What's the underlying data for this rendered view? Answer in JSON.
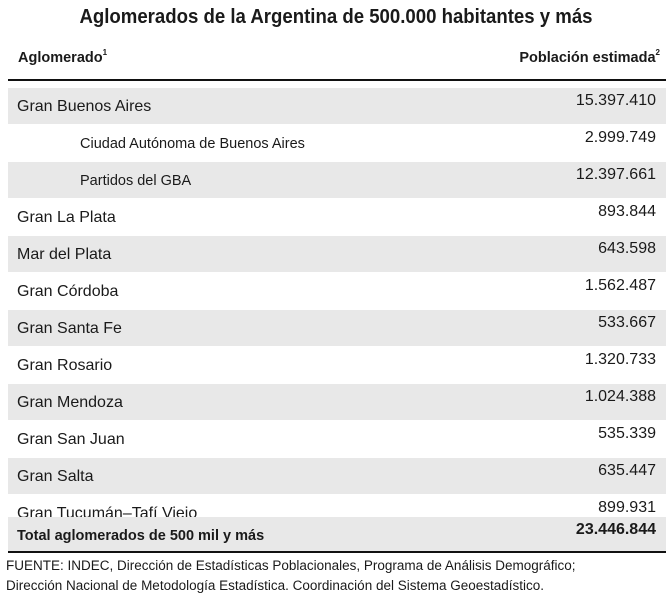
{
  "title": "Aglomerados de la Argentina de 500.000 habitantes y más",
  "columns": {
    "left": "Aglomerado",
    "left_note": "1",
    "right": "Población estimada",
    "right_note": "2"
  },
  "rows": [
    {
      "name": "Gran Buenos Aires",
      "value": "15.397.410"
    },
    {
      "name": "Ciudad Autónoma de Buenos Aires",
      "value": "2.999.749"
    },
    {
      "name": "Partidos del GBA",
      "value": "12.397.661"
    },
    {
      "name": "Gran La Plata",
      "value": "893.844"
    },
    {
      "name": "Mar del Plata",
      "value": "643.598"
    },
    {
      "name": "Gran Córdoba",
      "value": "1.562.487"
    },
    {
      "name": "Gran Santa Fe",
      "value": "533.667"
    },
    {
      "name": "Gran Rosario",
      "value": "1.320.733"
    },
    {
      "name": "Gran Mendoza",
      "value": "1.024.388"
    },
    {
      "name": "Gran San Juan",
      "value": "535.339"
    },
    {
      "name": "Gran Salta",
      "value": "635.447"
    },
    {
      "name": "Gran Tucumán–Tafí Viejo",
      "value": "899.931"
    }
  ],
  "total": {
    "name": "Total aglomerados de 500 mil y más",
    "value": "23.446.844"
  },
  "source": {
    "line1": "FUENTE: INDEC, Dirección de Estadísticas Poblacionales, Programa de Análisis Demográfico;",
    "line2": "Dirección Nacional de Metodología Estadística. Coordinación del Sistema Geoestadístico."
  }
}
